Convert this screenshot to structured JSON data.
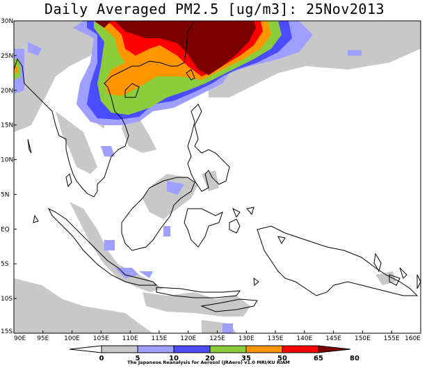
{
  "title": "Daily Averaged PM2.5 [ug/m3]: 25Nov2013",
  "map": {
    "lon_range": [
      90,
      160
    ],
    "lat_range": [
      -15,
      30
    ],
    "lon_ticks": [
      "90E",
      "95E",
      "100E",
      "105E",
      "110E",
      "115E",
      "120E",
      "125E",
      "130E",
      "135E",
      "140E",
      "145E",
      "150E",
      "155E",
      "160E"
    ],
    "lat_ticks": [
      "30N",
      "25N",
      "20N",
      "15N",
      "10N",
      "5N",
      "EQ",
      "5S",
      "10S",
      "15S"
    ]
  },
  "colorbar": {
    "levels": [
      "0",
      "5",
      "10",
      "20",
      "35",
      "50",
      "65",
      "80"
    ],
    "colors": [
      "#ffffff",
      "#c8c8c8",
      "#9f9fff",
      "#4b4bff",
      "#8ccd3c",
      "#ff9600",
      "#ff0000",
      "#7d0000"
    ],
    "credit": "The Japanese Reanalysis for Aerosol (JRAero) v1.0  MRI/KU RIAM"
  }
}
